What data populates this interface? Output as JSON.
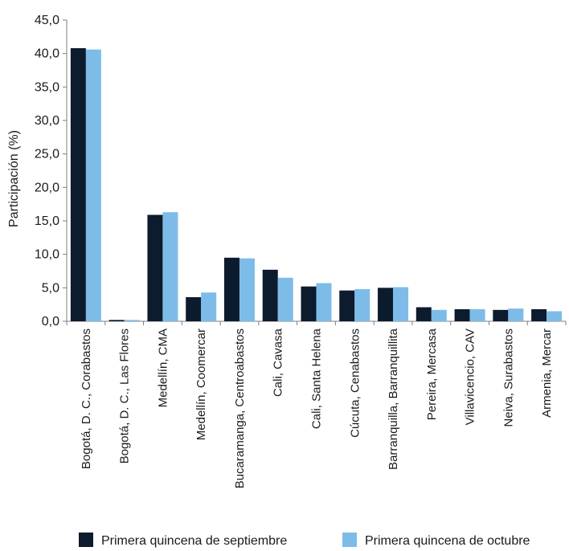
{
  "chart_data": {
    "type": "bar",
    "ylabel": "Participación (%)",
    "xlabel": "",
    "ylim": [
      0,
      45
    ],
    "yticks": [
      "0,0",
      "5,0",
      "10,0",
      "15,0",
      "20,0",
      "25,0",
      "30,0",
      "35,0",
      "40,0",
      "45,0"
    ],
    "grid": false,
    "legend_position": "bottom",
    "categories": [
      "Bogotá, D. C., Corabastos",
      "Bogotá, D. C., Las Flores",
      "Medellín, CMA",
      "Medellín, Coomercar",
      "Bucaramanga, Centroabastos",
      "Cali, Cavasa",
      "Cali, Santa Helena",
      "Cúcuta, Cenabastos",
      "Barranquilla, Barranquillita",
      "Pereira, Mercasa",
      "Villavicencio, CAV",
      "Neiva, Surabastos",
      "Armenia, Mercar"
    ],
    "series": [
      {
        "name": "Primera quincena de septiembre",
        "color": "#0d1b2e",
        "values": [
          40.8,
          0.2,
          15.9,
          3.6,
          9.5,
          7.7,
          5.2,
          4.6,
          5.0,
          2.1,
          1.8,
          1.7,
          1.8
        ]
      },
      {
        "name": "Primera quincena de octubre",
        "color": "#7dbce8",
        "values": [
          40.6,
          0.2,
          16.3,
          4.3,
          9.4,
          6.5,
          5.7,
          4.8,
          5.1,
          1.7,
          1.8,
          1.9,
          1.5
        ]
      }
    ]
  }
}
